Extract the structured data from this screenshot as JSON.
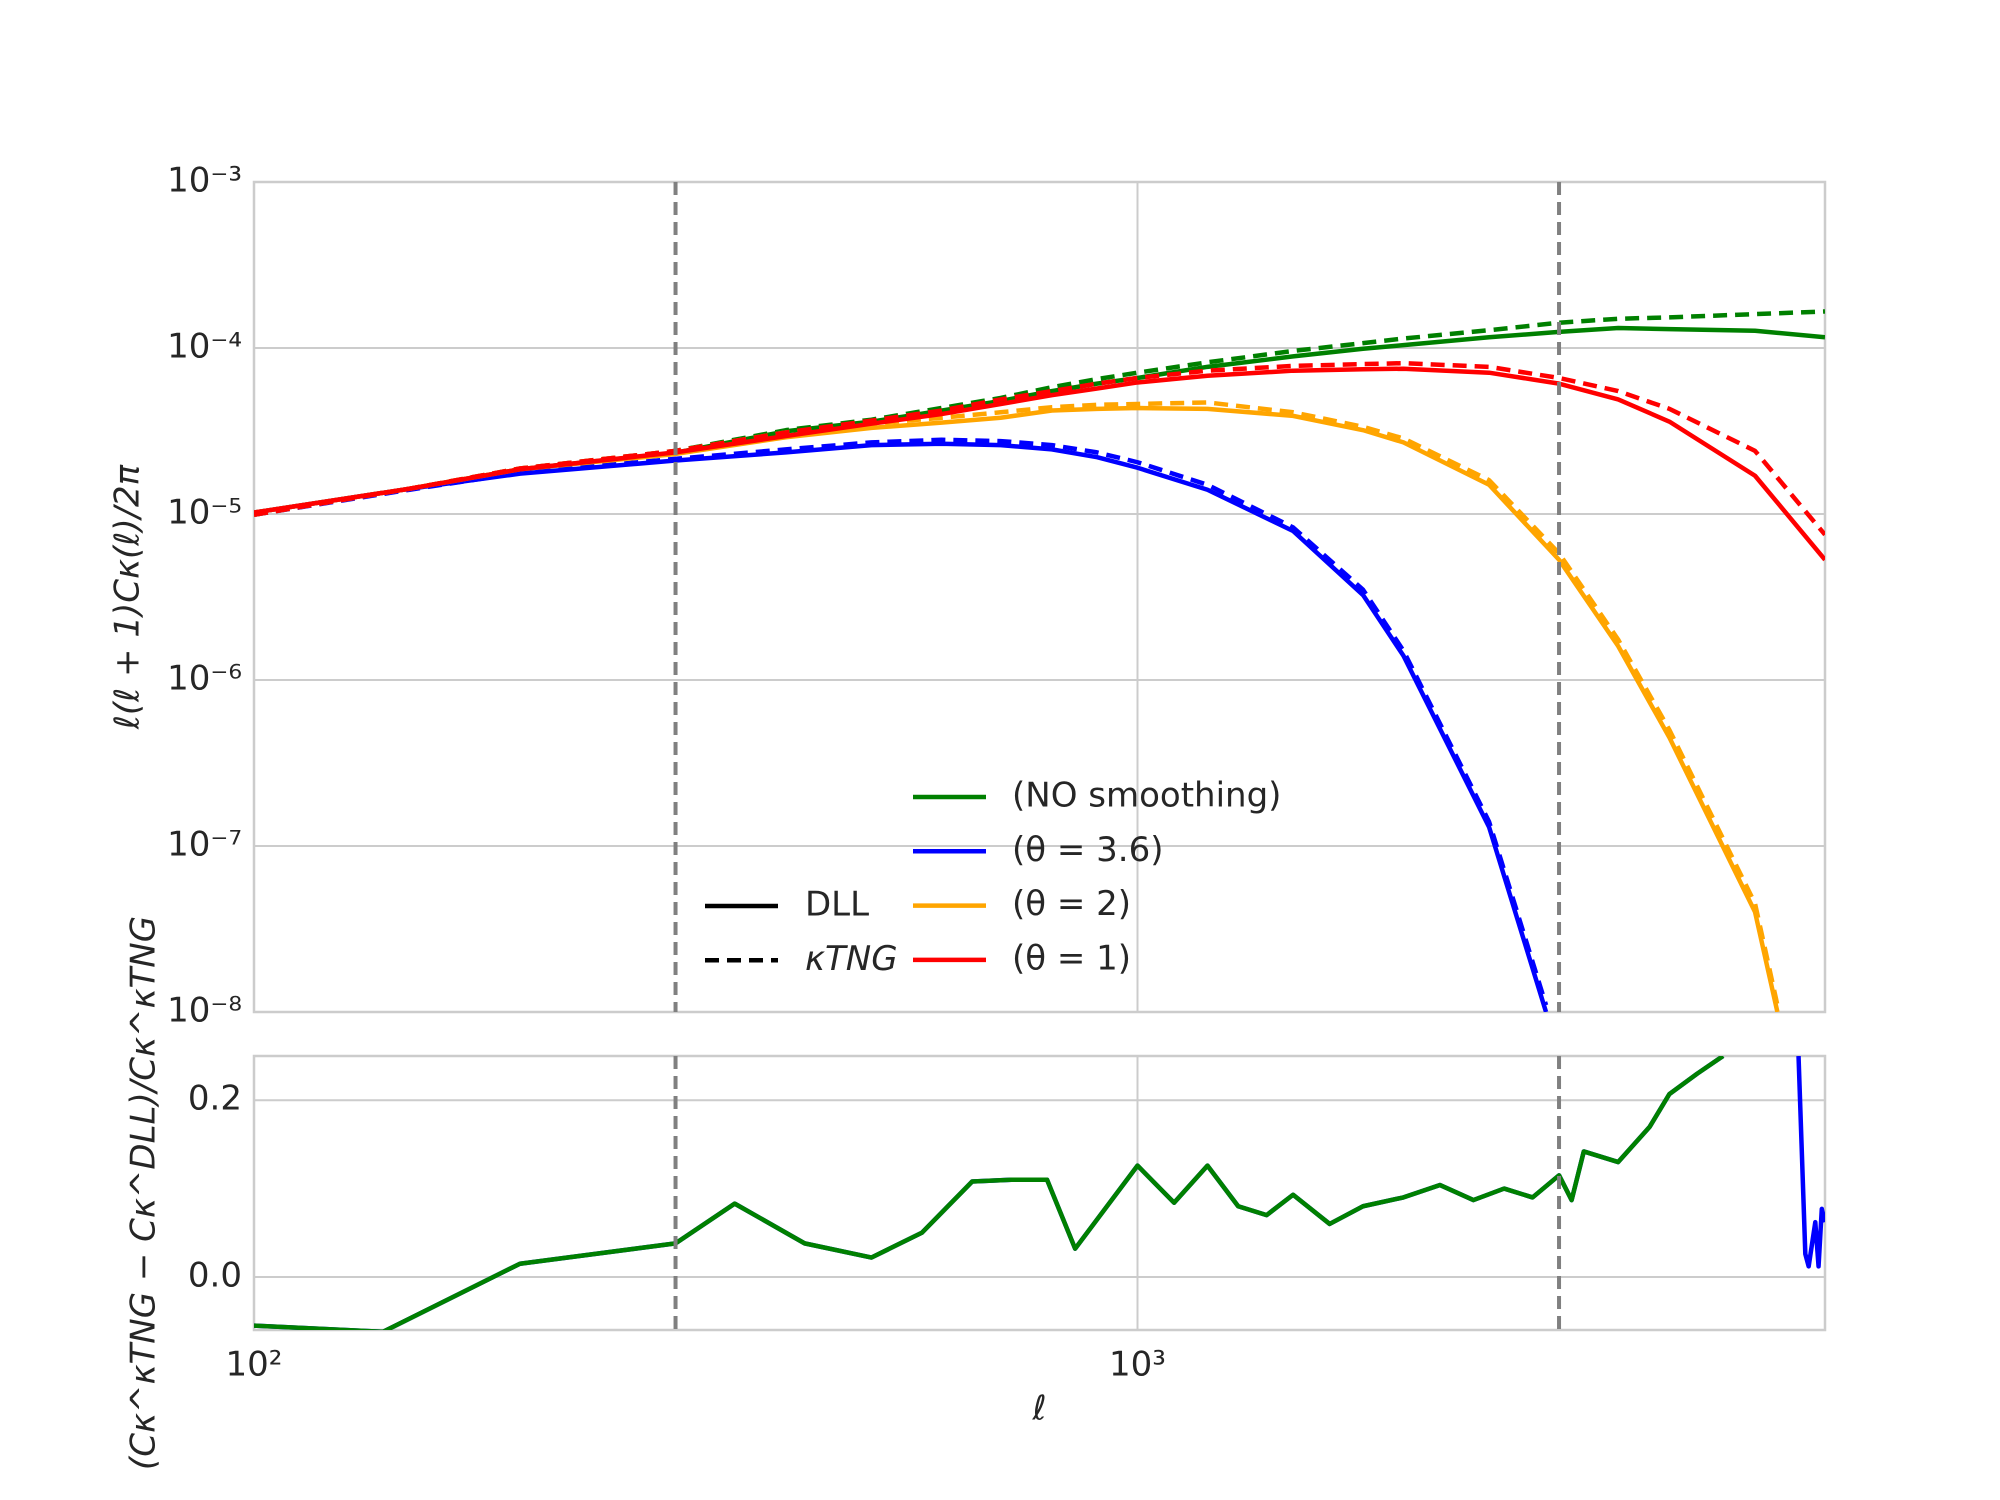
{
  "chart_data": [
    {
      "type": "line",
      "ylabel": "ℓ(ℓ + 1)Cκ(ℓ)/2π",
      "ylog": true,
      "ylim": [
        1e-08,
        0.001
      ],
      "yticks": [
        {
          "value": 0.001,
          "label": "10⁻³"
        },
        {
          "value": 0.0001,
          "label": "10⁻⁴"
        },
        {
          "value": 1e-05,
          "label": "10⁻⁵"
        },
        {
          "value": 1e-06,
          "label": "10⁻⁶"
        },
        {
          "value": 1e-07,
          "label": "10⁻⁷"
        },
        {
          "value": 1e-08,
          "label": "10⁻⁸"
        }
      ],
      "grid": true,
      "vlines": [
        300,
        3000
      ],
      "legend_styles": [
        {
          "name": "DLL",
          "dashed": false
        },
        {
          "name": "κTNG",
          "dashed": true
        }
      ],
      "series": [
        {
          "name": "(NO smoothing)",
          "color": "#008000",
          "lines": [
            {
              "x": [
                100,
                150,
                200,
                300,
                400,
                500,
                600,
                700,
                800,
                900,
                1000,
                1200,
                1500,
                1800,
                2000,
                2500,
                3000,
                3500,
                4000,
                5000,
                6000
              ],
              "values": [
                1.02e-05,
                1.42e-05,
                1.86e-05,
                2.34e-05,
                3.15e-05,
                3.6e-05,
                4.2e-05,
                4.8e-05,
                5.5e-05,
                6.1e-05,
                6.6e-05,
                7.7e-05,
                8.9e-05,
                9.9e-05,
                0.000104,
                0.000116,
                0.000125,
                0.000132,
                0.00013,
                0.000127,
                0.000116
              ]
            },
            {
              "x": [
                100,
                150,
                200,
                300,
                400,
                500,
                600,
                700,
                800,
                900,
                1000,
                1200,
                1500,
                1800,
                2000,
                2500,
                3000,
                3500,
                4000,
                5000,
                6000
              ],
              "values": [
                9.9e-06,
                1.42e-05,
                1.88e-05,
                2.4e-05,
                3.2e-05,
                3.7e-05,
                4.35e-05,
                5e-05,
                5.8e-05,
                6.5e-05,
                7.1e-05,
                8.2e-05,
                9.6e-05,
                0.000107,
                0.000114,
                0.000128,
                0.000142,
                0.00015,
                0.000153,
                0.00016,
                0.000166
              ]
            }
          ]
        },
        {
          "name": "(θ = 3.6)",
          "color": "#0000ff",
          "lines": [
            {
              "x": [
                100,
                150,
                200,
                300,
                400,
                500,
                600,
                700,
                800,
                900,
                1000,
                1200,
                1500,
                1800,
                2000,
                2500,
                2900
              ],
              "values": [
                1.02e-05,
                1.42e-05,
                1.75e-05,
                2.1e-05,
                2.35e-05,
                2.6e-05,
                2.65e-05,
                2.6e-05,
                2.45e-05,
                2.2e-05,
                1.9e-05,
                1.4e-05,
                7.9e-06,
                3.25e-06,
                1.4e-06,
                1.3e-07,
                1e-08
              ]
            },
            {
              "x": [
                100,
                150,
                200,
                300,
                400,
                500,
                600,
                700,
                800,
                900,
                1000,
                1200,
                1500,
                1800,
                2000,
                2500,
                2900
              ],
              "values": [
                9.9e-06,
                1.4e-05,
                1.77e-05,
                2.15e-05,
                2.45e-05,
                2.7e-05,
                2.8e-05,
                2.75e-05,
                2.6e-05,
                2.35e-05,
                2.05e-05,
                1.5e-05,
                8.3e-06,
                3.5e-06,
                1.5e-06,
                1.4e-07,
                1.1e-08
              ]
            }
          ]
        },
        {
          "name": "(θ = 2)",
          "color": "#ffa500",
          "lines": [
            {
              "x": [
                100,
                150,
                200,
                300,
                400,
                500,
                600,
                700,
                800,
                900,
                1000,
                1200,
                1500,
                1800,
                2000,
                2500,
                3000,
                3500,
                4000,
                5000,
                5300
              ],
              "values": [
                1.02e-05,
                1.42e-05,
                1.86e-05,
                2.3e-05,
                2.9e-05,
                3.3e-05,
                3.55e-05,
                3.8e-05,
                4.2e-05,
                4.3e-05,
                4.35e-05,
                4.3e-05,
                3.9e-05,
                3.2e-05,
                2.7e-05,
                1.5e-05,
                5.3e-06,
                1.6e-06,
                4.5e-07,
                4e-08,
                1e-08
              ]
            },
            {
              "x": [
                100,
                150,
                200,
                300,
                400,
                500,
                600,
                700,
                800,
                900,
                1000,
                1200,
                1500,
                1800,
                2000,
                2500,
                3000,
                3500,
                4000,
                5000,
                5300
              ],
              "values": [
                9.9e-06,
                1.42e-05,
                1.88e-05,
                2.4e-05,
                3.1e-05,
                3.5e-05,
                3.8e-05,
                4.1e-05,
                4.4e-05,
                4.55e-05,
                4.6e-05,
                4.7e-05,
                4.1e-05,
                3.35e-05,
                2.85e-05,
                1.6e-05,
                5.8e-06,
                1.75e-06,
                5e-07,
                4.5e-08,
                1.1e-08
              ]
            }
          ]
        },
        {
          "name": "(θ = 1)",
          "color": "#ff0000",
          "lines": [
            {
              "x": [
                100,
                150,
                200,
                300,
                400,
                500,
                600,
                700,
                800,
                900,
                1000,
                1200,
                1500,
                1800,
                2000,
                2500,
                3000,
                3500,
                4000,
                5000,
                6000
              ],
              "values": [
                1.02e-05,
                1.42e-05,
                1.86e-05,
                2.35e-05,
                2.95e-05,
                3.5e-05,
                4e-05,
                4.6e-05,
                5.2e-05,
                5.7e-05,
                6.2e-05,
                6.8e-05,
                7.3e-05,
                7.45e-05,
                7.5e-05,
                7.1e-05,
                6.1e-05,
                4.9e-05,
                3.6e-05,
                1.7e-05,
                5.3e-06
              ]
            },
            {
              "x": [
                100,
                150,
                200,
                300,
                400,
                500,
                600,
                700,
                800,
                900,
                1000,
                1200,
                1500,
                1800,
                2000,
                2500,
                3000,
                3500,
                4000,
                5000,
                6000
              ],
              "values": [
                9.9e-06,
                1.42e-05,
                1.88e-05,
                2.4e-05,
                3.1e-05,
                3.65e-05,
                4.2e-05,
                4.9e-05,
                5.5e-05,
                6.1e-05,
                6.6e-05,
                7.3e-05,
                7.8e-05,
                8e-05,
                8.1e-05,
                7.7e-05,
                6.6e-05,
                5.5e-05,
                4.3e-05,
                2.4e-05,
                7.5e-06
              ]
            }
          ]
        }
      ]
    },
    {
      "type": "line",
      "xlabel": "ℓ",
      "ylabel": "(Cκ^κTNG − Cκ^DLL)/Cκ^κTNG",
      "xlog": true,
      "xlim": [
        100,
        6000
      ],
      "xticks": [
        {
          "value": 100,
          "label": "10²"
        },
        {
          "value": 1000,
          "label": "10³"
        }
      ],
      "ylim": [
        -0.06,
        0.25
      ],
      "yticks": [
        {
          "value": 0,
          "label": "0.0"
        },
        0.2
      ],
      "grid": true,
      "vlines": [
        300,
        3000
      ],
      "series": [
        {
          "color": "#0000ff",
          "x": [
            100,
            140,
            200,
            300,
            350,
            420,
            500,
            570,
            650,
            720,
            790,
            850,
            1000,
            1100,
            1200,
            1300,
            1400,
            1500,
            1650,
            1800,
            2000,
            2200,
            2400,
            2600,
            2800,
            3000,
            3100,
            3200,
            3500,
            3800,
            4000,
            4300,
            4600,
            5000,
            5600,
            5700,
            5750,
            5850,
            5900,
            5950,
            6000
          ],
          "values": [
            -0.055,
            -0.062,
            0.015,
            0.038,
            0.083,
            0.038,
            0.022,
            0.05,
            0.108,
            0.11,
            0.11,
            0.032,
            0.126,
            0.084,
            0.126,
            0.08,
            0.07,
            0.093,
            0.06,
            0.08,
            0.09,
            0.104,
            0.087,
            0.1,
            0.09,
            0.115,
            0.087,
            0.142,
            0.13,
            0.17,
            0.207,
            0.23,
            0.25,
            null,
            0.25,
            0.026,
            0.012,
            0.062,
            0.012,
            0.077,
            0.062
          ]
        },
        {
          "color": "#008000",
          "x": [
            100,
            140,
            200,
            300,
            350,
            420,
            500,
            570,
            650,
            720,
            790,
            850,
            1000,
            1100,
            1200,
            1300,
            1400,
            1500,
            1650,
            1800,
            2000,
            2200,
            2400,
            2600,
            2800,
            3000,
            3100,
            3200,
            3500,
            3800,
            4000,
            4300,
            4600
          ],
          "values": [
            -0.055,
            -0.062,
            0.015,
            0.038,
            0.083,
            0.038,
            0.022,
            0.05,
            0.108,
            0.11,
            0.11,
            0.032,
            0.126,
            0.084,
            0.126,
            0.08,
            0.07,
            0.093,
            0.06,
            0.08,
            0.09,
            0.104,
            0.087,
            0.1,
            0.09,
            0.115,
            0.087,
            0.142,
            0.13,
            0.17,
            0.207,
            0.23,
            0.25
          ]
        }
      ]
    }
  ]
}
